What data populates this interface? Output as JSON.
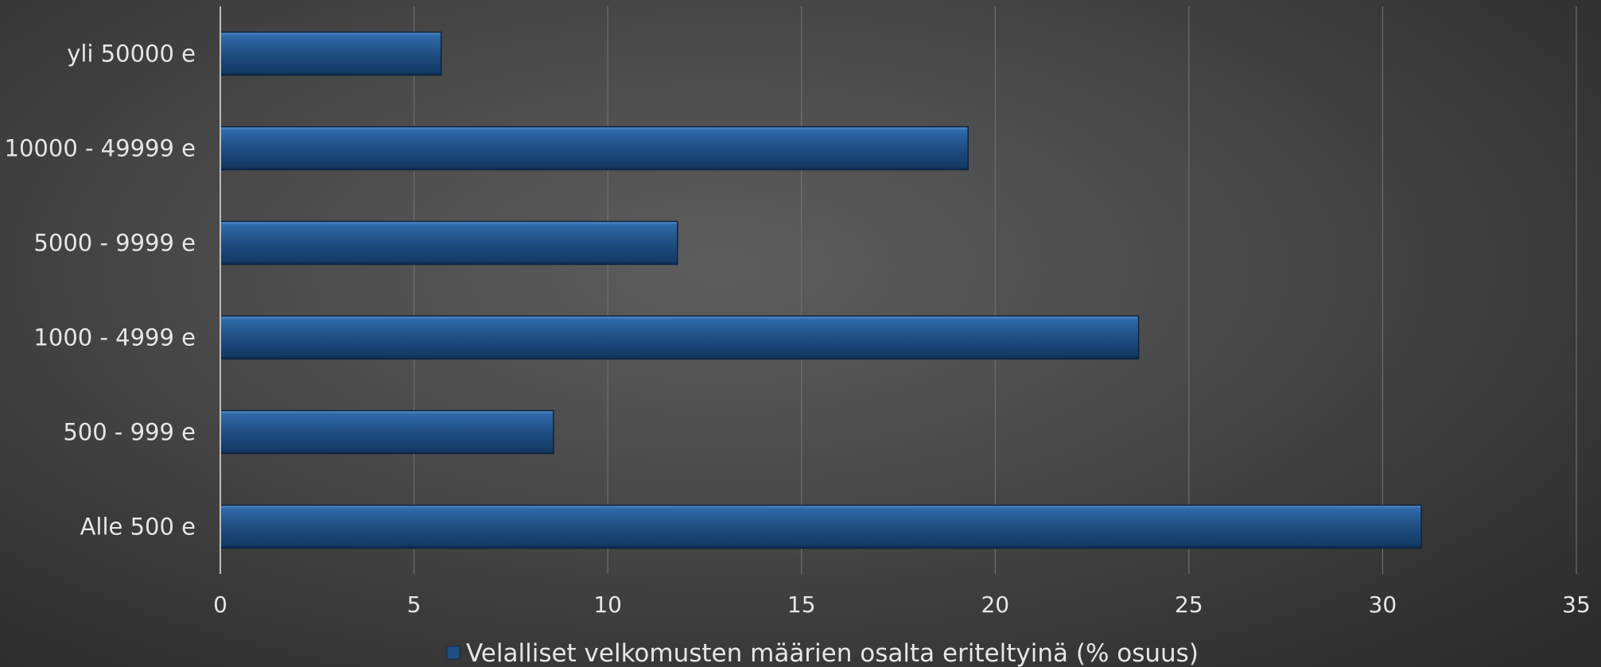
{
  "chart_data": {
    "type": "bar",
    "orientation": "horizontal",
    "categories": [
      "Alle 500 e",
      "500 - 999 e",
      "1000 - 4999 e",
      "5000 - 9999 e",
      "10000 - 49999 e",
      "yli 50000 e"
    ],
    "series": [
      {
        "name": "Velalliset velkomusten määrien osalta eriteltyinä (% osuus)",
        "values": [
          31,
          8.6,
          23.7,
          11.8,
          19.3,
          5.7
        ],
        "color": "#1f4e82"
      }
    ],
    "xlim": [
      0,
      35
    ],
    "xticks": [
      "0",
      "5",
      "10",
      "15",
      "20",
      "25",
      "30",
      "35"
    ],
    "title": "",
    "xlabel": "",
    "ylabel": "",
    "grid": true,
    "legend_position": "bottom"
  }
}
